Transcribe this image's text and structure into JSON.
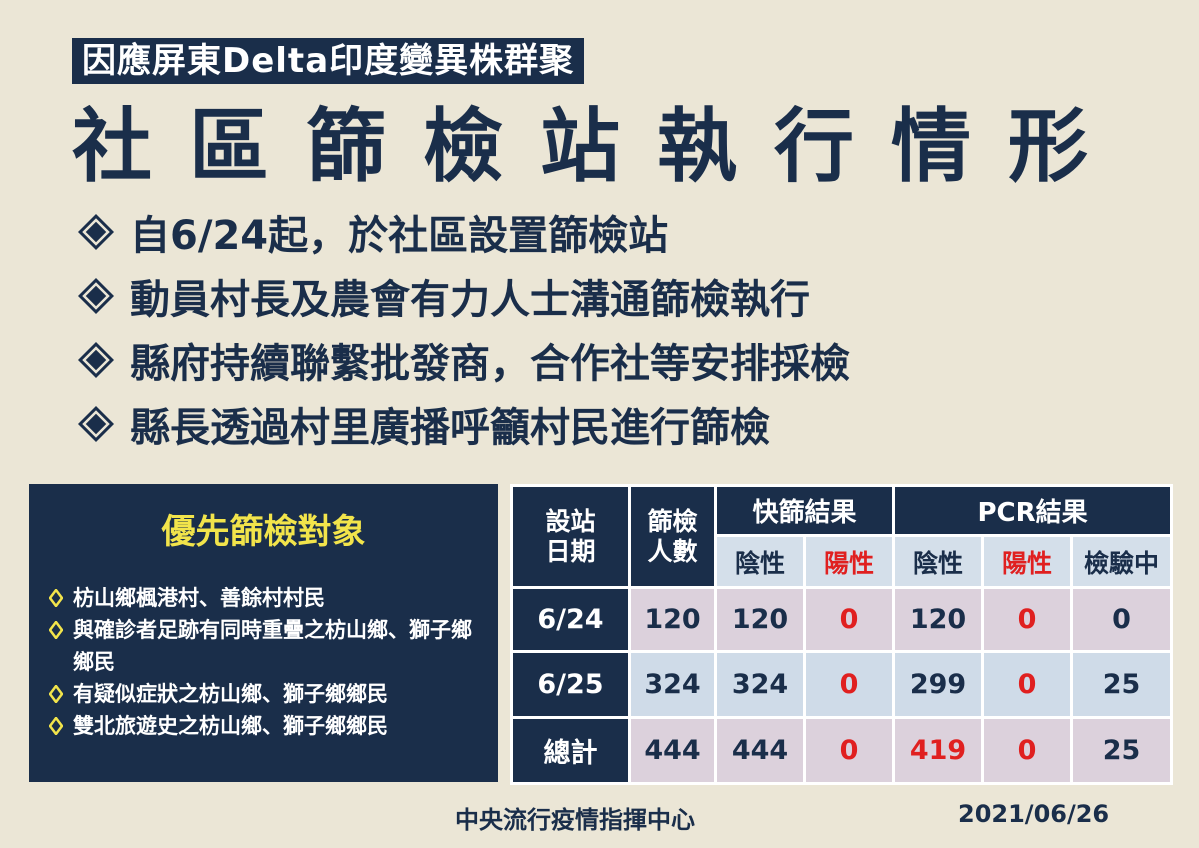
{
  "header": {
    "subtitle": "因應屏東Delta印度變異株群聚",
    "title": "社區篩檢站執行情形"
  },
  "bullets": [
    {
      "icon": "diamond-bullet-icon",
      "text": "自6/24起，於社區設置篩檢站"
    },
    {
      "icon": "diamond-bullet-icon",
      "text": "動員村長及農會有力人士溝通篩檢執行"
    },
    {
      "icon": "diamond-bullet-icon",
      "text": "縣府持續聯繫批發商，合作社等安排採檢"
    },
    {
      "icon": "diamond-bullet-icon",
      "text": "縣長透過村里廣播呼籲村民進行篩檢"
    }
  ],
  "priority": {
    "title": "優先篩檢對象",
    "items": [
      "枋山鄉楓港村、善餘村村民",
      "與確診者足跡有同時重疊之枋山鄉、獅子鄉鄉民",
      "有疑似症狀之枋山鄉、獅子鄉鄉民",
      "雙北旅遊史之枋山鄉、獅子鄉鄉民"
    ]
  },
  "table": {
    "headers": {
      "date": "設站日期",
      "screened": "篩檢人數",
      "rapid": "快篩結果",
      "pcr": "PCR結果",
      "negative": "陰性",
      "positive": "陽性",
      "pending": "檢驗中"
    },
    "rows": [
      {
        "date": "6/24",
        "screened": "120",
        "rapid_neg": "120",
        "rapid_pos": "0",
        "pcr_neg": "120",
        "pcr_pos": "0",
        "pending": "0"
      },
      {
        "date": "6/25",
        "screened": "324",
        "rapid_neg": "324",
        "rapid_pos": "0",
        "pcr_neg": "299",
        "pcr_pos": "0",
        "pending": "25"
      },
      {
        "date": "總計",
        "screened": "444",
        "rapid_neg": "444",
        "rapid_pos": "0",
        "pcr_neg": "419",
        "pcr_pos": "0",
        "pending": "25"
      }
    ]
  },
  "footer": {
    "org": "中央流行疫情指揮中心",
    "date": "2021/06/26"
  },
  "colors": {
    "background": "#ebe6d6",
    "navy": "#1a2e4a",
    "highlight_yellow": "#f2e44b",
    "positive_red": "#e02020",
    "row_pink": "#dcd1dc",
    "row_blue": "#cfdbe8"
  }
}
